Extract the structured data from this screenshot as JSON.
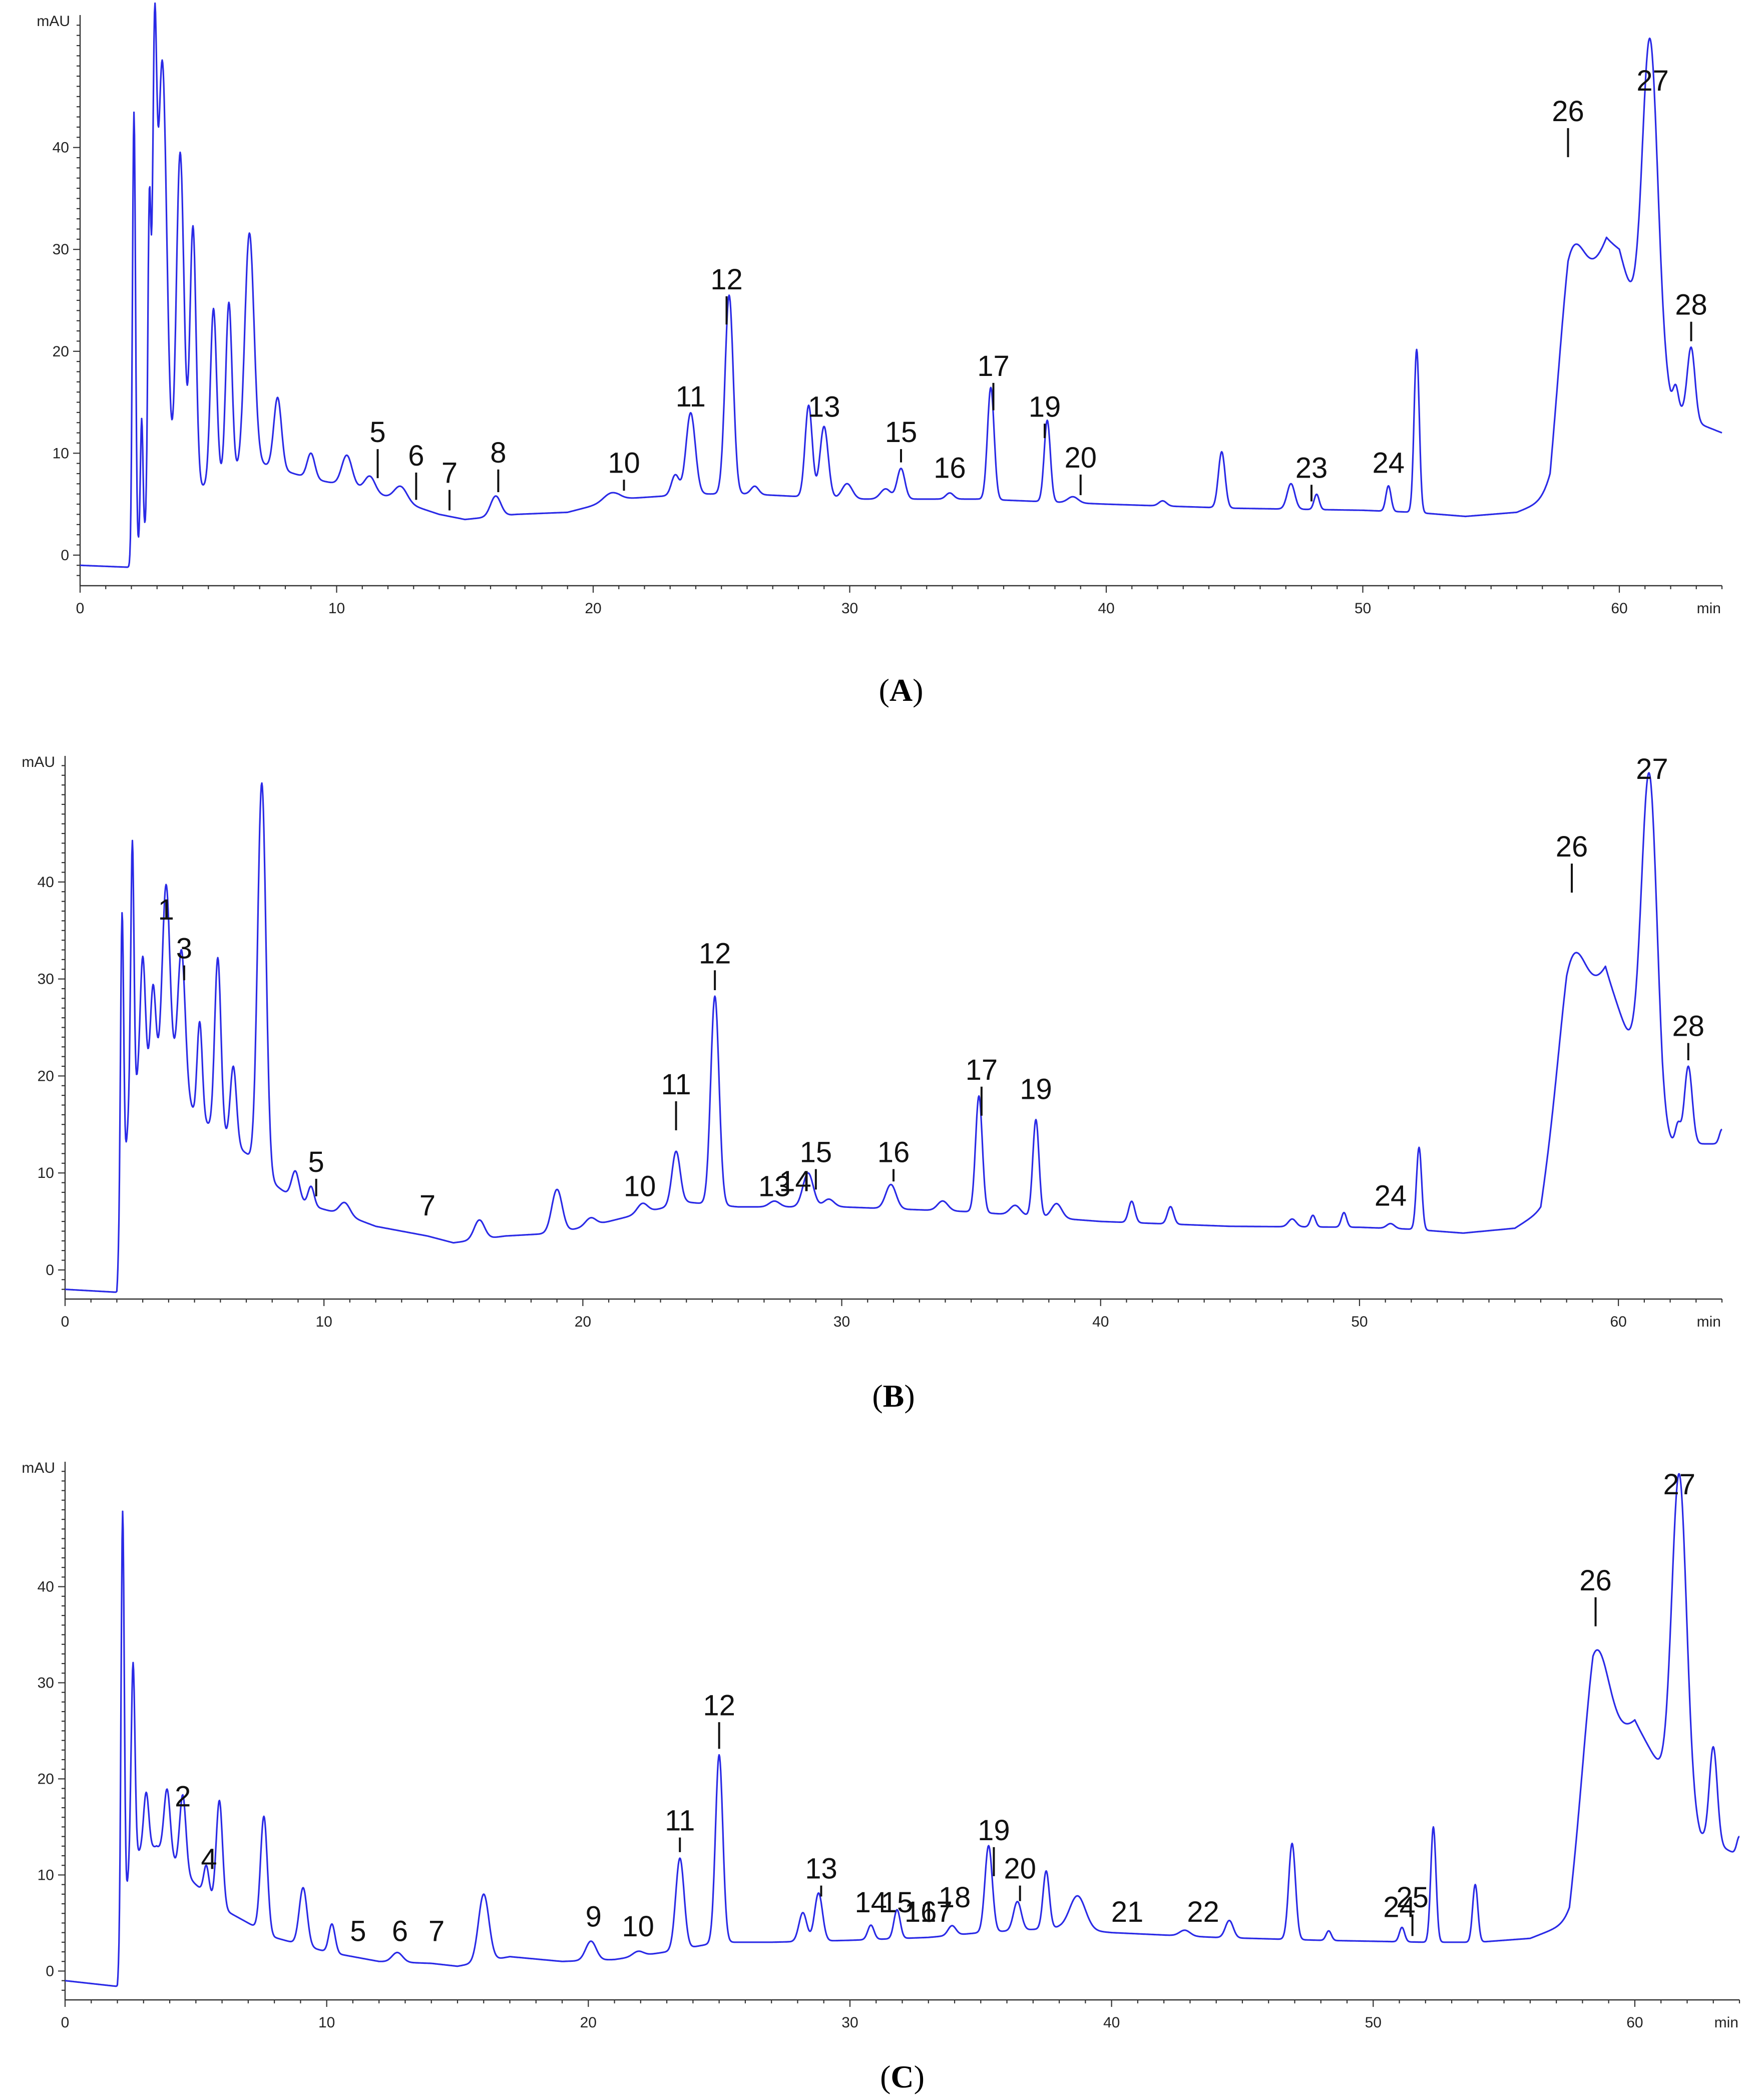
{
  "chart_data": [
    {
      "type": "line",
      "panel": "A",
      "panel_label_pre": "(",
      "panel_label_letter": "A",
      "panel_label_post": ")",
      "ylabel": "mAU",
      "xlabel": "min",
      "xlim": [
        0,
        64
      ],
      "ylim": [
        -3,
        53
      ],
      "xticks": [
        0,
        10,
        20,
        30,
        40,
        50,
        60
      ],
      "yticks": [
        0,
        10,
        20,
        30,
        40
      ],
      "baseline": [
        [
          0,
          -1
        ],
        [
          2,
          -1.2
        ],
        [
          2.8,
          4
        ],
        [
          5,
          7
        ],
        [
          7,
          9
        ],
        [
          9,
          7.5
        ],
        [
          11,
          6.5
        ],
        [
          14,
          4
        ],
        [
          15,
          3.5
        ],
        [
          17,
          4
        ],
        [
          19,
          4.2
        ],
        [
          21,
          5.5
        ],
        [
          24,
          6
        ],
        [
          26,
          6
        ],
        [
          30,
          5.5
        ],
        [
          35,
          5.5
        ],
        [
          40,
          5
        ],
        [
          45,
          4.6
        ],
        [
          50,
          4.4
        ],
        [
          52,
          4.2
        ],
        [
          54,
          3.8
        ],
        [
          56,
          4.2
        ],
        [
          57.3,
          5.5
        ],
        [
          58,
          20
        ],
        [
          59.5,
          31
        ],
        [
          60,
          30
        ],
        [
          60.8,
          22
        ],
        [
          62,
          15
        ],
        [
          63,
          13
        ],
        [
          64,
          12
        ]
      ],
      "peaks": [
        [
          2.1,
          44,
          0.06
        ],
        [
          2.4,
          12,
          0.05
        ],
        [
          2.7,
          30,
          0.06
        ],
        [
          2.9,
          38,
          0.08
        ],
        [
          3.2,
          44,
          0.18
        ],
        [
          3.9,
          34,
          0.15
        ],
        [
          4.4,
          26,
          0.12
        ],
        [
          5.2,
          17,
          0.12
        ],
        [
          5.8,
          17,
          0.12
        ],
        [
          6.6,
          23,
          0.18
        ],
        [
          7.7,
          7,
          0.15
        ],
        [
          9.0,
          2.5,
          0.15
        ],
        [
          10.4,
          3,
          0.2
        ],
        [
          11.3,
          1.5,
          0.2
        ],
        [
          12.5,
          1.5,
          0.25
        ],
        [
          16.2,
          2,
          0.2
        ],
        [
          20.7,
          0.8,
          0.3
        ],
        [
          23.2,
          2,
          0.15
        ],
        [
          23.8,
          8,
          0.18
        ],
        [
          25.3,
          19.5,
          0.16
        ],
        [
          26.3,
          0.8,
          0.15
        ],
        [
          28.4,
          9,
          0.14
        ],
        [
          29.0,
          7,
          0.16
        ],
        [
          29.9,
          1.5,
          0.2
        ],
        [
          31.4,
          1,
          0.2
        ],
        [
          32.0,
          3,
          0.15
        ],
        [
          33.9,
          0.6,
          0.15
        ],
        [
          35.5,
          11,
          0.13
        ],
        [
          37.7,
          8,
          0.12
        ],
        [
          38.7,
          0.6,
          0.2
        ],
        [
          42.2,
          0.5,
          0.15
        ],
        [
          44.5,
          5.5,
          0.13
        ],
        [
          47.2,
          2.5,
          0.15
        ],
        [
          48.2,
          1.5,
          0.1
        ],
        [
          51.0,
          2.5,
          0.1
        ],
        [
          52.1,
          16,
          0.1
        ],
        [
          58.1,
          9,
          0.5
        ],
        [
          61.2,
          31,
          0.3
        ],
        [
          62.2,
          2,
          0.1
        ],
        [
          62.8,
          7,
          0.15
        ]
      ],
      "annotations": [
        {
          "label": "5",
          "x": 11.6,
          "y": 10.5
        },
        {
          "label": "6",
          "x": 13.1,
          "y": 8.2
        },
        {
          "label": "7",
          "x": 14.4,
          "y": 6.5
        },
        {
          "label": "8",
          "x": 16.3,
          "y": 8.5
        },
        {
          "label": "10",
          "x": 21.2,
          "y": 7.5
        },
        {
          "label": "11",
          "x": 23.8,
          "y": 14
        },
        {
          "label": "12",
          "x": 25.2,
          "y": 25.5
        },
        {
          "label": "13",
          "x": 29.0,
          "y": 13
        },
        {
          "label": "15",
          "x": 32.0,
          "y": 10.5
        },
        {
          "label": "16",
          "x": 33.9,
          "y": 7
        },
        {
          "label": "17",
          "x": 35.6,
          "y": 17
        },
        {
          "label": "19",
          "x": 37.6,
          "y": 13
        },
        {
          "label": "20",
          "x": 39.0,
          "y": 8
        },
        {
          "label": "23",
          "x": 48.0,
          "y": 7
        },
        {
          "label": "24",
          "x": 51.0,
          "y": 7.5
        },
        {
          "label": "26",
          "x": 58.0,
          "y": 42
        },
        {
          "label": "27",
          "x": 61.3,
          "y": 45
        },
        {
          "label": "28",
          "x": 62.8,
          "y": 23
        }
      ]
    },
    {
      "type": "line",
      "panel": "B",
      "panel_label_pre": "(",
      "panel_label_letter": "B",
      "panel_label_post": ")",
      "ylabel": "mAU",
      "xlabel": "min",
      "xlim": [
        0,
        64
      ],
      "ylim": [
        -3,
        53
      ],
      "xticks": [
        0,
        10,
        20,
        30,
        40,
        50,
        60
      ],
      "yticks": [
        0,
        10,
        20,
        30,
        40
      ],
      "baseline": [
        [
          0,
          -2
        ],
        [
          2,
          -2.3
        ],
        [
          2.5,
          18
        ],
        [
          4,
          22
        ],
        [
          5,
          16
        ],
        [
          6,
          14
        ],
        [
          7,
          12
        ],
        [
          8,
          9
        ],
        [
          9,
          7
        ],
        [
          11,
          5.5
        ],
        [
          12,
          4.5
        ],
        [
          14,
          3.5
        ],
        [
          15,
          2.8
        ],
        [
          17,
          3.5
        ],
        [
          19,
          3.8
        ],
        [
          21,
          5
        ],
        [
          24,
          7
        ],
        [
          26,
          6.5
        ],
        [
          30,
          6.5
        ],
        [
          35,
          6
        ],
        [
          40,
          5
        ],
        [
          45,
          4.5
        ],
        [
          50,
          4.4
        ],
        [
          52,
          4.2
        ],
        [
          54,
          3.8
        ],
        [
          56,
          4.3
        ],
        [
          57,
          6
        ],
        [
          58,
          22
        ],
        [
          59.5,
          31
        ],
        [
          60.5,
          23
        ],
        [
          61.7,
          13
        ],
        [
          63,
          13
        ],
        [
          64,
          13
        ]
      ],
      "peaks": [
        [
          2.2,
          31,
          0.06
        ],
        [
          2.6,
          26,
          0.06
        ],
        [
          3.0,
          13,
          0.1
        ],
        [
          3.4,
          9,
          0.1
        ],
        [
          3.9,
          18,
          0.14
        ],
        [
          4.5,
          14,
          0.14
        ],
        [
          5.2,
          10,
          0.1
        ],
        [
          5.9,
          18,
          0.12
        ],
        [
          6.5,
          8,
          0.12
        ],
        [
          7.6,
          40,
          0.16
        ],
        [
          8.9,
          3,
          0.15
        ],
        [
          9.5,
          2,
          0.12
        ],
        [
          10.8,
          1.3,
          0.2
        ],
        [
          16.0,
          2,
          0.2
        ],
        [
          19.0,
          4.5,
          0.2
        ],
        [
          20.3,
          0.8,
          0.2
        ],
        [
          22.3,
          1,
          0.2
        ],
        [
          23.6,
          5.5,
          0.16
        ],
        [
          25.1,
          21.5,
          0.16
        ],
        [
          27.4,
          0.6,
          0.2
        ],
        [
          28.7,
          3.5,
          0.2
        ],
        [
          29.5,
          0.8,
          0.2
        ],
        [
          31.9,
          2.5,
          0.2
        ],
        [
          33.9,
          1,
          0.2
        ],
        [
          35.3,
          12,
          0.13
        ],
        [
          36.7,
          1,
          0.2
        ],
        [
          37.5,
          10,
          0.12
        ],
        [
          38.3,
          1.5,
          0.2
        ],
        [
          41.2,
          2.2,
          0.12
        ],
        [
          42.7,
          1.8,
          0.12
        ],
        [
          47.4,
          0.8,
          0.15
        ],
        [
          48.2,
          1.2,
          0.1
        ],
        [
          49.4,
          1.5,
          0.1
        ],
        [
          51.2,
          0.5,
          0.15
        ],
        [
          52.3,
          8.5,
          0.1
        ],
        [
          58.2,
          9,
          0.5
        ],
        [
          61.2,
          34,
          0.3
        ],
        [
          62.3,
          2,
          0.1
        ],
        [
          62.7,
          8,
          0.15
        ],
        [
          64.0,
          1.5,
          0.1
        ]
      ],
      "annotations": [
        {
          "label": "1",
          "x": 3.9,
          "y": 35.5
        },
        {
          "label": "3",
          "x": 4.6,
          "y": 31.5
        },
        {
          "label": "5",
          "x": 9.7,
          "y": 9.5
        },
        {
          "label": "7",
          "x": 14.0,
          "y": 5
        },
        {
          "label": "10",
          "x": 22.2,
          "y": 7
        },
        {
          "label": "11",
          "x": 23.6,
          "y": 17.5
        },
        {
          "label": "12",
          "x": 25.1,
          "y": 31
        },
        {
          "label": "13",
          "x": 27.4,
          "y": 7
        },
        {
          "label": "14",
          "x": 28.2,
          "y": 7.5
        },
        {
          "label": "15",
          "x": 29.0,
          "y": 10.5
        },
        {
          "label": "16",
          "x": 32.0,
          "y": 10.5
        },
        {
          "label": "17",
          "x": 35.4,
          "y": 19
        },
        {
          "label": "19",
          "x": 37.5,
          "y": 17
        },
        {
          "label": "24",
          "x": 51.2,
          "y": 6
        },
        {
          "label": "26",
          "x": 58.2,
          "y": 42
        },
        {
          "label": "27",
          "x": 61.3,
          "y": 50
        },
        {
          "label": "28",
          "x": 62.7,
          "y": 23.5
        }
      ]
    },
    {
      "type": "line",
      "panel": "C",
      "panel_label_pre": "(",
      "panel_label_letter": "C",
      "panel_label_post": ")",
      "ylabel": "mAU",
      "xlabel": "min",
      "xlim": [
        0,
        64
      ],
      "ylim": [
        -3,
        53
      ],
      "xticks": [
        0,
        10,
        20,
        30,
        40,
        50,
        60
      ],
      "yticks": [
        0,
        10,
        20,
        30,
        40
      ],
      "baseline": [
        [
          0,
          -1
        ],
        [
          2,
          -1.6
        ],
        [
          2.5,
          12
        ],
        [
          3.5,
          13
        ],
        [
          5,
          9
        ],
        [
          6,
          6.5
        ],
        [
          7,
          5
        ],
        [
          8,
          3.5
        ],
        [
          10,
          2
        ],
        [
          12,
          1
        ],
        [
          14,
          0.8
        ],
        [
          15,
          0.5
        ],
        [
          17,
          1.5
        ],
        [
          19,
          1
        ],
        [
          21,
          1.2
        ],
        [
          23,
          2
        ],
        [
          25,
          3
        ],
        [
          27,
          3
        ],
        [
          30,
          3.2
        ],
        [
          33,
          3.5
        ],
        [
          35,
          4
        ],
        [
          38,
          4.5
        ],
        [
          40,
          4
        ],
        [
          44,
          3.5
        ],
        [
          48,
          3.2
        ],
        [
          52,
          3
        ],
        [
          54,
          3
        ],
        [
          56,
          3.4
        ],
        [
          57.5,
          5
        ],
        [
          58.4,
          21
        ],
        [
          60,
          26
        ],
        [
          61,
          21
        ],
        [
          62.5,
          14
        ],
        [
          64,
          12
        ]
      ],
      "peaks": [
        [
          2.2,
          44,
          0.06
        ],
        [
          2.6,
          20,
          0.07
        ],
        [
          3.1,
          6,
          0.1
        ],
        [
          3.9,
          7,
          0.12
        ],
        [
          4.5,
          8,
          0.12
        ],
        [
          5.4,
          3,
          0.1
        ],
        [
          5.9,
          11,
          0.12
        ],
        [
          7.6,
          12,
          0.13
        ],
        [
          9.1,
          6,
          0.15
        ],
        [
          10.2,
          3,
          0.12
        ],
        [
          12.7,
          1,
          0.2
        ],
        [
          16.0,
          7,
          0.2
        ],
        [
          20.1,
          2,
          0.2
        ],
        [
          21.9,
          0.5,
          0.2
        ],
        [
          23.5,
          9.5,
          0.16
        ],
        [
          25.0,
          19.5,
          0.14
        ],
        [
          28.2,
          3,
          0.15
        ],
        [
          28.8,
          5,
          0.15
        ],
        [
          30.8,
          1.5,
          0.12
        ],
        [
          31.8,
          3,
          0.12
        ],
        [
          33.9,
          1,
          0.15
        ],
        [
          35.3,
          9,
          0.14
        ],
        [
          36.4,
          3,
          0.15
        ],
        [
          37.5,
          6,
          0.12
        ],
        [
          38.7,
          3.5,
          0.3
        ],
        [
          42.8,
          0.6,
          0.2
        ],
        [
          44.5,
          1.8,
          0.15
        ],
        [
          46.9,
          10,
          0.13
        ],
        [
          48.3,
          1,
          0.1
        ],
        [
          51.1,
          1.5,
          0.1
        ],
        [
          52.3,
          12,
          0.1
        ],
        [
          53.9,
          6,
          0.1
        ],
        [
          58.5,
          12,
          0.5
        ],
        [
          61.7,
          34,
          0.28
        ],
        [
          63.0,
          10,
          0.15
        ],
        [
          64.0,
          2,
          0.1
        ]
      ],
      "annotations": [
        {
          "label": "2",
          "x": 4.5,
          "y": 16.5
        },
        {
          "label": "4",
          "x": 5.5,
          "y": 10
        },
        {
          "label": "5",
          "x": 11.2,
          "y": 2.5
        },
        {
          "label": "6",
          "x": 12.8,
          "y": 2.5
        },
        {
          "label": "7",
          "x": 14.2,
          "y": 2.5
        },
        {
          "label": "9",
          "x": 20.2,
          "y": 4
        },
        {
          "label": "10",
          "x": 21.9,
          "y": 3
        },
        {
          "label": "11",
          "x": 23.5,
          "y": 14
        },
        {
          "label": "12",
          "x": 25.0,
          "y": 26
        },
        {
          "label": "13",
          "x": 28.9,
          "y": 9
        },
        {
          "label": "14",
          "x": 30.8,
          "y": 5.5
        },
        {
          "label": "15",
          "x": 31.8,
          "y": 5.5
        },
        {
          "label": "16",
          "x": 32.7,
          "y": 4.5
        },
        {
          "label": "17",
          "x": 33.3,
          "y": 4.5
        },
        {
          "label": "18",
          "x": 34.0,
          "y": 6
        },
        {
          "label": "19",
          "x": 35.5,
          "y": 13
        },
        {
          "label": "20",
          "x": 36.5,
          "y": 9
        },
        {
          "label": "21",
          "x": 40.6,
          "y": 4.5
        },
        {
          "label": "22",
          "x": 43.5,
          "y": 4.5
        },
        {
          "label": "24",
          "x": 51.0,
          "y": 5
        },
        {
          "label": "25",
          "x": 51.5,
          "y": 6
        },
        {
          "label": "26",
          "x": 58.5,
          "y": 39
        },
        {
          "label": "27",
          "x": 61.7,
          "y": 49
        }
      ]
    }
  ]
}
